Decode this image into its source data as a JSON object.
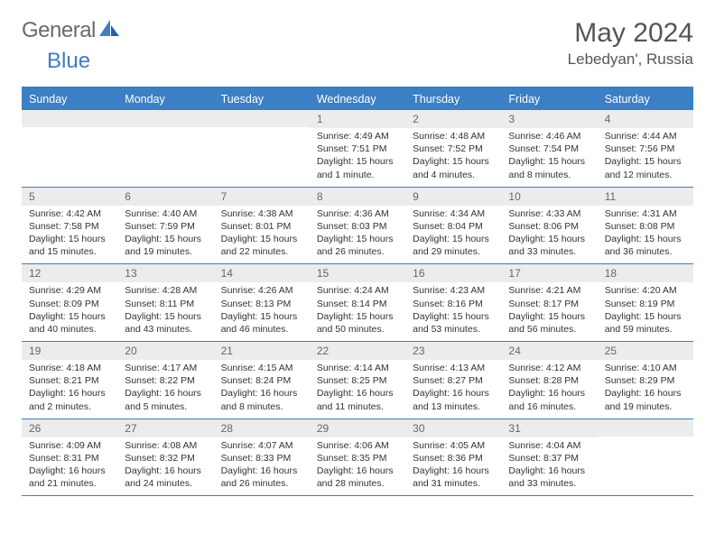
{
  "brand": {
    "text1": "General",
    "text2": "Blue"
  },
  "title": "May 2024",
  "location": "Lebedyan', Russia",
  "day_names": [
    "Sunday",
    "Monday",
    "Tuesday",
    "Wednesday",
    "Thursday",
    "Friday",
    "Saturday"
  ],
  "colors": {
    "header_bg": "#3b7fc4",
    "daynum_bg": "#ececec",
    "text": "#333333",
    "muted": "#666666"
  },
  "weeks": [
    [
      {
        "blank": true
      },
      {
        "blank": true
      },
      {
        "blank": true
      },
      {
        "n": "1",
        "sunrise": "4:49 AM",
        "sunset": "7:51 PM",
        "daylight": "15 hours and 1 minute."
      },
      {
        "n": "2",
        "sunrise": "4:48 AM",
        "sunset": "7:52 PM",
        "daylight": "15 hours and 4 minutes."
      },
      {
        "n": "3",
        "sunrise": "4:46 AM",
        "sunset": "7:54 PM",
        "daylight": "15 hours and 8 minutes."
      },
      {
        "n": "4",
        "sunrise": "4:44 AM",
        "sunset": "7:56 PM",
        "daylight": "15 hours and 12 minutes."
      }
    ],
    [
      {
        "n": "5",
        "sunrise": "4:42 AM",
        "sunset": "7:58 PM",
        "daylight": "15 hours and 15 minutes."
      },
      {
        "n": "6",
        "sunrise": "4:40 AM",
        "sunset": "7:59 PM",
        "daylight": "15 hours and 19 minutes."
      },
      {
        "n": "7",
        "sunrise": "4:38 AM",
        "sunset": "8:01 PM",
        "daylight": "15 hours and 22 minutes."
      },
      {
        "n": "8",
        "sunrise": "4:36 AM",
        "sunset": "8:03 PM",
        "daylight": "15 hours and 26 minutes."
      },
      {
        "n": "9",
        "sunrise": "4:34 AM",
        "sunset": "8:04 PM",
        "daylight": "15 hours and 29 minutes."
      },
      {
        "n": "10",
        "sunrise": "4:33 AM",
        "sunset": "8:06 PM",
        "daylight": "15 hours and 33 minutes."
      },
      {
        "n": "11",
        "sunrise": "4:31 AM",
        "sunset": "8:08 PM",
        "daylight": "15 hours and 36 minutes."
      }
    ],
    [
      {
        "n": "12",
        "sunrise": "4:29 AM",
        "sunset": "8:09 PM",
        "daylight": "15 hours and 40 minutes."
      },
      {
        "n": "13",
        "sunrise": "4:28 AM",
        "sunset": "8:11 PM",
        "daylight": "15 hours and 43 minutes."
      },
      {
        "n": "14",
        "sunrise": "4:26 AM",
        "sunset": "8:13 PM",
        "daylight": "15 hours and 46 minutes."
      },
      {
        "n": "15",
        "sunrise": "4:24 AM",
        "sunset": "8:14 PM",
        "daylight": "15 hours and 50 minutes."
      },
      {
        "n": "16",
        "sunrise": "4:23 AM",
        "sunset": "8:16 PM",
        "daylight": "15 hours and 53 minutes."
      },
      {
        "n": "17",
        "sunrise": "4:21 AM",
        "sunset": "8:17 PM",
        "daylight": "15 hours and 56 minutes."
      },
      {
        "n": "18",
        "sunrise": "4:20 AM",
        "sunset": "8:19 PM",
        "daylight": "15 hours and 59 minutes."
      }
    ],
    [
      {
        "n": "19",
        "sunrise": "4:18 AM",
        "sunset": "8:21 PM",
        "daylight": "16 hours and 2 minutes."
      },
      {
        "n": "20",
        "sunrise": "4:17 AM",
        "sunset": "8:22 PM",
        "daylight": "16 hours and 5 minutes."
      },
      {
        "n": "21",
        "sunrise": "4:15 AM",
        "sunset": "8:24 PM",
        "daylight": "16 hours and 8 minutes."
      },
      {
        "n": "22",
        "sunrise": "4:14 AM",
        "sunset": "8:25 PM",
        "daylight": "16 hours and 11 minutes."
      },
      {
        "n": "23",
        "sunrise": "4:13 AM",
        "sunset": "8:27 PM",
        "daylight": "16 hours and 13 minutes."
      },
      {
        "n": "24",
        "sunrise": "4:12 AM",
        "sunset": "8:28 PM",
        "daylight": "16 hours and 16 minutes."
      },
      {
        "n": "25",
        "sunrise": "4:10 AM",
        "sunset": "8:29 PM",
        "daylight": "16 hours and 19 minutes."
      }
    ],
    [
      {
        "n": "26",
        "sunrise": "4:09 AM",
        "sunset": "8:31 PM",
        "daylight": "16 hours and 21 minutes."
      },
      {
        "n": "27",
        "sunrise": "4:08 AM",
        "sunset": "8:32 PM",
        "daylight": "16 hours and 24 minutes."
      },
      {
        "n": "28",
        "sunrise": "4:07 AM",
        "sunset": "8:33 PM",
        "daylight": "16 hours and 26 minutes."
      },
      {
        "n": "29",
        "sunrise": "4:06 AM",
        "sunset": "8:35 PM",
        "daylight": "16 hours and 28 minutes."
      },
      {
        "n": "30",
        "sunrise": "4:05 AM",
        "sunset": "8:36 PM",
        "daylight": "16 hours and 31 minutes."
      },
      {
        "n": "31",
        "sunrise": "4:04 AM",
        "sunset": "8:37 PM",
        "daylight": "16 hours and 33 minutes."
      },
      {
        "blank": true
      }
    ]
  ],
  "labels": {
    "sunrise": "Sunrise:",
    "sunset": "Sunset:",
    "daylight": "Daylight:"
  }
}
